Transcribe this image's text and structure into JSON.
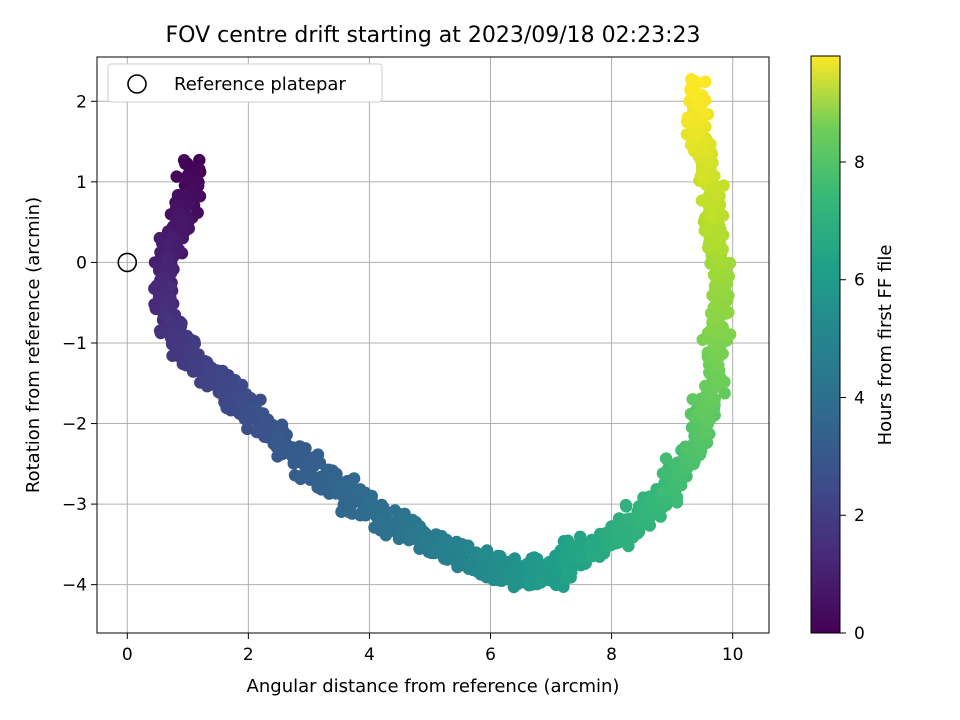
{
  "chart_data": {
    "type": "scatter",
    "title": "FOV centre drift starting at 2023/09/18 02:23:23",
    "xlabel": "Angular distance from reference (arcmin)",
    "ylabel": "Rotation from reference (arcmin)",
    "xlim": [
      -0.5,
      10.6
    ],
    "ylim": [
      -4.6,
      2.55
    ],
    "xticks": [
      0,
      2,
      4,
      6,
      8,
      10
    ],
    "yticks": [
      -4,
      -3,
      -2,
      -1,
      0,
      1,
      2
    ],
    "grid": true,
    "legend": {
      "placement": "top-left",
      "entries": [
        "Reference platepar"
      ]
    },
    "reference_point": {
      "x": 0,
      "y": 0
    },
    "colorbar": {
      "label": "Hours from first FF file",
      "range": [
        0,
        9.8
      ],
      "ticks": [
        0,
        2,
        4,
        6,
        8
      ],
      "colormap": "viridis"
    },
    "trend_points": [
      {
        "t": 0.0,
        "x": 1.1,
        "y": 1.2
      },
      {
        "t": 0.3,
        "x": 1.0,
        "y": 0.75
      },
      {
        "t": 0.6,
        "x": 0.8,
        "y": 0.4
      },
      {
        "t": 0.9,
        "x": 0.65,
        "y": 0.0
      },
      {
        "t": 1.2,
        "x": 0.6,
        "y": -0.5
      },
      {
        "t": 1.5,
        "x": 0.8,
        "y": -0.95
      },
      {
        "t": 2.0,
        "x": 1.5,
        "y": -1.5
      },
      {
        "t": 2.5,
        "x": 2.3,
        "y": -2.1
      },
      {
        "t": 3.0,
        "x": 3.2,
        "y": -2.65
      },
      {
        "t": 3.5,
        "x": 4.1,
        "y": -3.1
      },
      {
        "t": 4.0,
        "x": 5.0,
        "y": -3.45
      },
      {
        "t": 4.5,
        "x": 5.8,
        "y": -3.75
      },
      {
        "t": 5.0,
        "x": 6.5,
        "y": -3.85
      },
      {
        "t": 5.5,
        "x": 7.2,
        "y": -3.75
      },
      {
        "t": 6.0,
        "x": 8.0,
        "y": -3.45
      },
      {
        "t": 6.5,
        "x": 8.8,
        "y": -2.95
      },
      {
        "t": 7.0,
        "x": 9.35,
        "y": -2.35
      },
      {
        "t": 7.5,
        "x": 9.65,
        "y": -1.5
      },
      {
        "t": 8.0,
        "x": 9.8,
        "y": -0.6
      },
      {
        "t": 8.5,
        "x": 9.75,
        "y": 0.2
      },
      {
        "t": 9.0,
        "x": 9.6,
        "y": 1.0
      },
      {
        "t": 9.4,
        "x": 9.45,
        "y": 1.6
      },
      {
        "t": 9.8,
        "x": 9.35,
        "y": 2.2
      }
    ],
    "n_points": 1300
  }
}
